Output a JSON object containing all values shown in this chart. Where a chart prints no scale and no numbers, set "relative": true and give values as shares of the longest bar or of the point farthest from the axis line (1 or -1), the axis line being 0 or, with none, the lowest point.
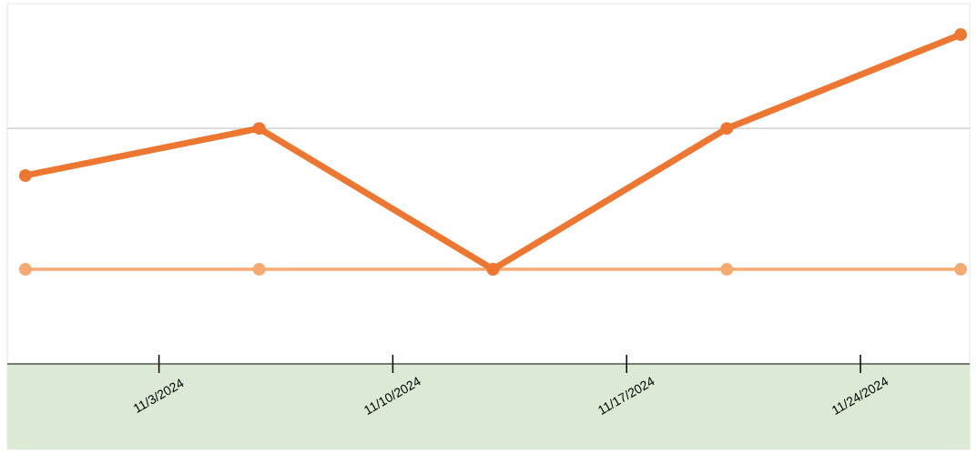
{
  "chart_data": {
    "type": "line",
    "relative": true,
    "x": [
      "2024-10-30",
      "2024-11-06",
      "2024-11-13",
      "2024-11-20",
      "2024-11-27"
    ],
    "xlim": [
      "2024-10-29T11:00",
      "2024-11-27T06:30"
    ],
    "xticks": [
      {
        "value": "2024-11-03",
        "label": "11/3/2024"
      },
      {
        "value": "2024-11-10",
        "label": "11/10/2024"
      },
      {
        "value": "2024-11-17",
        "label": "11/17/2024"
      },
      {
        "value": "2024-11-24",
        "label": "11/24/2024"
      }
    ],
    "series": [
      {
        "color": "#ed7730",
        "values": [
          0.572,
          0.715,
          0.287,
          0.715,
          1
        ]
      },
      {
        "color": "#f5aa72",
        "values": [
          0.287,
          0.287,
          0.287,
          0.287,
          0.287
        ]
      }
    ],
    "ref_lines": [
      {
        "axis": "y",
        "value": 0.715,
        "color": "#c8c8c8"
      }
    ],
    "marker": "circle",
    "line_style": "solid"
  }
}
